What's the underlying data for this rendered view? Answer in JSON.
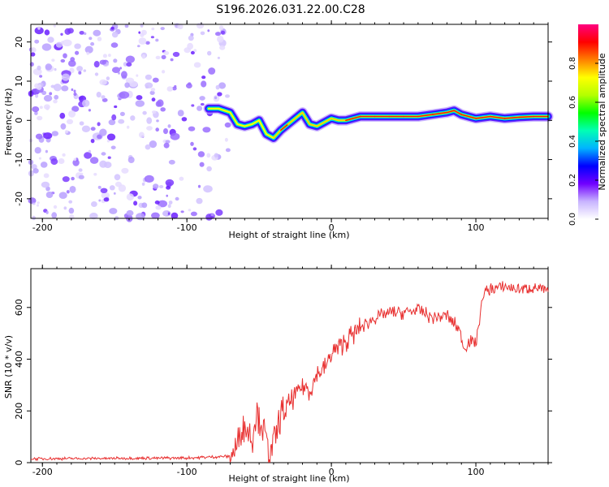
{
  "figure_title": "S196.2026.031.22.00.C28",
  "chart_data": [
    {
      "type": "heatmap",
      "title": "",
      "xlabel": "Height of straight line (km)",
      "ylabel": "Frequency (Hz)",
      "xlim": [
        -208,
        150
      ],
      "ylim": [
        -25,
        24.5
      ],
      "xticks": [
        -200,
        -100,
        0,
        100
      ],
      "xtick_labels": [
        "-200",
        "-100",
        "0",
        "100"
      ],
      "yticks": [
        -20,
        -10,
        0,
        10,
        20
      ],
      "ytick_labels": [
        "-20",
        "-10",
        "0",
        "10",
        "20"
      ],
      "noise_region_x": [
        -208,
        -70
      ],
      "doppler_ridge": {
        "x": [
          -85,
          -78,
          -70,
          -65,
          -60,
          -55,
          -50,
          -45,
          -40,
          -35,
          -30,
          -25,
          -20,
          -15,
          -10,
          -5,
          0,
          5,
          10,
          20,
          30,
          40,
          50,
          60,
          70,
          80,
          85,
          90,
          100,
          110,
          120,
          130,
          140,
          150
        ],
        "y": [
          3,
          3,
          2,
          -1,
          -1.5,
          -1,
          0,
          -3.5,
          -4.5,
          -2.5,
          -1,
          0.5,
          2,
          -1,
          -1.5,
          -0.5,
          0.5,
          0,
          0,
          1,
          1,
          1,
          1,
          1,
          1.5,
          2,
          2.5,
          1.5,
          0.5,
          1,
          0.5,
          0.8,
          1,
          1
        ]
      },
      "colorbar": {
        "label": "Normalized spectral amplitude",
        "range": [
          0,
          1
        ],
        "ticks": [
          0.0,
          0.2,
          0.4,
          0.6,
          0.8
        ],
        "tick_labels": [
          "0.0",
          "0.2",
          "0.4",
          "0.6",
          "0.8"
        ],
        "colors": [
          "#ffffff",
          "#c8b4ff",
          "#7000ff",
          "#0000ff",
          "#00b4ff",
          "#00ffb4",
          "#00ff00",
          "#b4ff00",
          "#ffff00",
          "#ff8000",
          "#ff0000",
          "#ff0080"
        ]
      }
    },
    {
      "type": "line",
      "title": "",
      "xlabel": "Height of straight line (km)",
      "ylabel": "SNR (10 * v/v)",
      "xlim": [
        -208,
        150
      ],
      "ylim": [
        0,
        750
      ],
      "xticks": [
        -200,
        -100,
        0,
        100
      ],
      "xtick_labels": [
        "-200",
        "-100",
        "0",
        "100"
      ],
      "yticks": [
        0,
        200,
        400,
        600
      ],
      "ytick_labels": [
        "0",
        "200",
        "400",
        "600"
      ],
      "series": [
        {
          "name": "SNR",
          "color": "#e83030",
          "x": [
            -208,
            -100,
            -70,
            -65,
            -62,
            -58,
            -55,
            -52,
            -48,
            -45,
            -42,
            -38,
            -35,
            -30,
            -25,
            -20,
            -15,
            -10,
            -5,
            0,
            10,
            20,
            30,
            40,
            50,
            60,
            70,
            80,
            88,
            92,
            95,
            100,
            105,
            110,
            120,
            130,
            140,
            150
          ],
          "y": [
            15,
            18,
            25,
            60,
            150,
            130,
            90,
            200,
            150,
            80,
            30,
            120,
            180,
            220,
            260,
            300,
            280,
            340,
            360,
            420,
            470,
            520,
            560,
            580,
            580,
            590,
            560,
            570,
            520,
            440,
            470,
            460,
            650,
            670,
            680,
            670,
            680,
            660
          ]
        }
      ]
    }
  ]
}
